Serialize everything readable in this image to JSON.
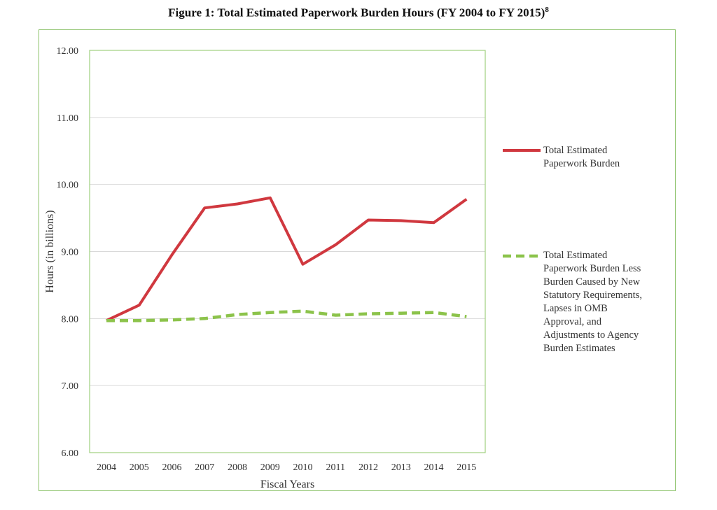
{
  "title": "Figure 1: Total Estimated Paperwork Burden Hours (FY 2004 to FY 2015)",
  "title_footnote": "8",
  "chart_data": {
    "type": "line",
    "x": [
      "2004",
      "2005",
      "2006",
      "2007",
      "2008",
      "2009",
      "2010",
      "2011",
      "2012",
      "2013",
      "2014",
      "2015"
    ],
    "series": [
      {
        "name": "Total Estimated Paperwork Burden",
        "color": "#d0383f",
        "style": "solid",
        "values": [
          7.97,
          8.2,
          8.95,
          9.65,
          9.71,
          9.8,
          8.81,
          9.1,
          9.47,
          9.46,
          9.43,
          9.78
        ]
      },
      {
        "name": "Total Estimated Paperwork Burden Less Burden Caused by New Statutory Requirements, Lapses in OMB Approval, and Adjustments to Agency Burden Estimates",
        "color": "#8cc34b",
        "style": "dashed",
        "values": [
          7.97,
          7.97,
          7.98,
          8.0,
          8.06,
          8.09,
          8.11,
          8.05,
          8.07,
          8.08,
          8.09,
          8.03
        ]
      }
    ],
    "xlabel": "Fiscal Years",
    "ylabel": "Hours (in billions)",
    "ylim": [
      6.0,
      12.0
    ],
    "yticks": [
      "6.00",
      "7.00",
      "8.00",
      "9.00",
      "10.00",
      "11.00",
      "12.00"
    ],
    "grid": true,
    "legend_position": "right"
  },
  "legend": {
    "series1_lines": [
      "Total Estimated",
      "Paperwork Burden"
    ],
    "series2_lines": [
      "Total Estimated",
      "Paperwork Burden Less",
      "Burden Caused by New",
      "Statutory Requirements,",
      "Lapses in OMB",
      "Approval, and",
      "Adjustments to Agency",
      "Burden Estimates"
    ]
  }
}
